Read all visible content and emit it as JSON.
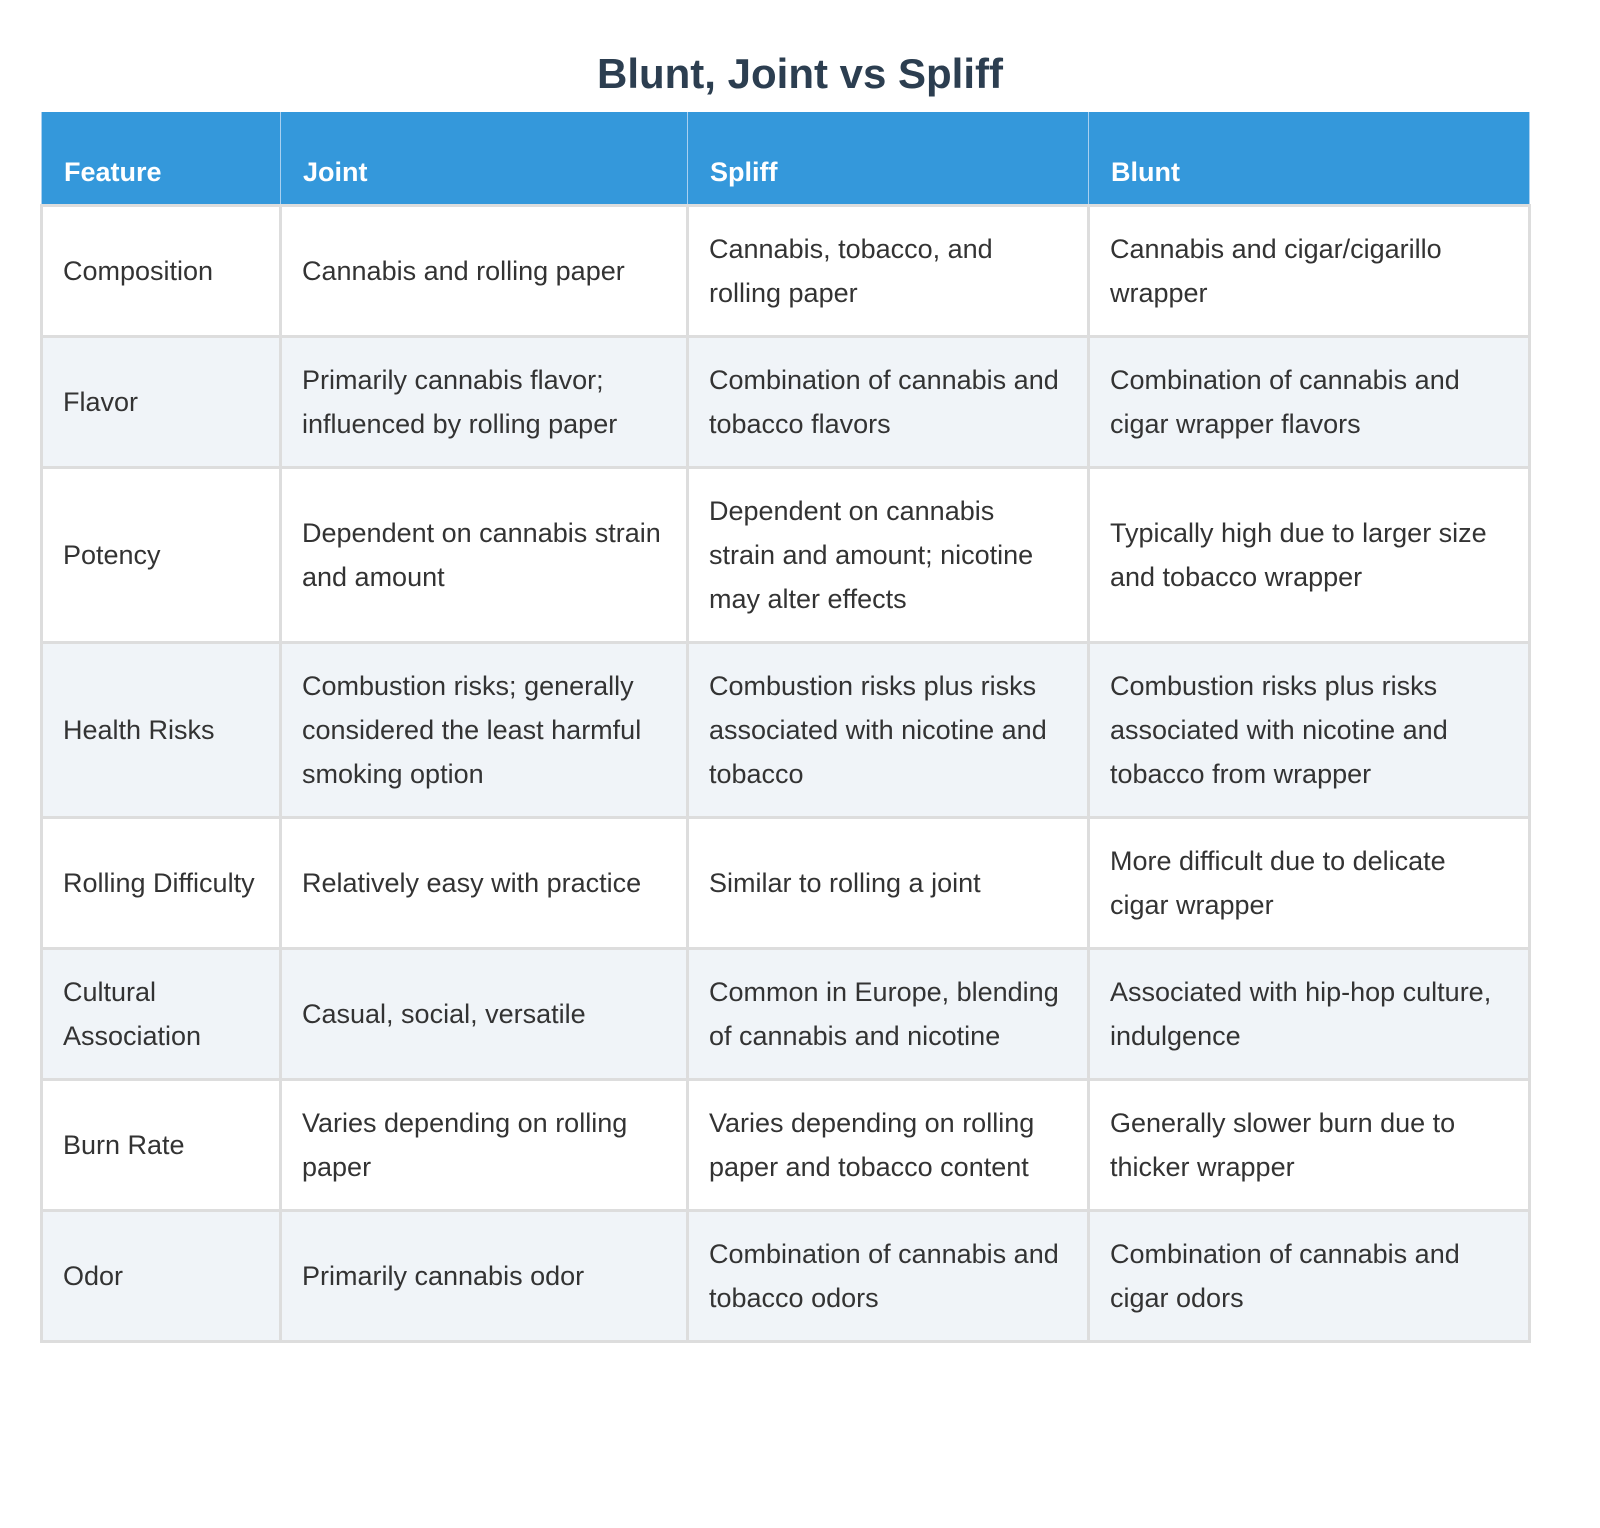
{
  "title": "Blunt, Joint vs Spliff",
  "columns": [
    "Feature",
    "Joint",
    "Spliff",
    "Blunt"
  ],
  "rows": [
    [
      "Composition",
      "Cannabis and rolling paper",
      "Cannabis, tobacco, and rolling paper",
      "Cannabis and cigar/cigarillo wrapper"
    ],
    [
      "Flavor",
      "Primarily cannabis flavor; influenced by rolling paper",
      "Combination of cannabis and tobacco flavors",
      "Combination of cannabis and cigar wrapper flavors"
    ],
    [
      "Potency",
      "Dependent on cannabis strain and amount",
      "Dependent on cannabis strain and amount; nicotine may alter effects",
      "Typically high due to larger size and tobacco wrapper"
    ],
    [
      "Health Risks",
      "Combustion risks; generally considered the least harmful smoking option",
      "Combustion risks plus risks associated with nicotine and tobacco",
      "Combustion risks plus risks associated with nicotine and tobacco from wrapper"
    ],
    [
      "Rolling Difficulty",
      "Relatively easy with practice",
      "Similar to rolling a joint",
      "More difficult due to delicate cigar wrapper"
    ],
    [
      "Cultural Association",
      "Casual, social, versatile",
      "Common in Europe, blending of cannabis and nicotine",
      "Associated with hip-hop culture, indulgence"
    ],
    [
      "Burn Rate",
      "Varies depending on rolling paper",
      "Varies depending on rolling paper and tobacco content",
      "Generally slower burn due to thicker wrapper"
    ],
    [
      "Odor",
      "Primarily cannabis odor",
      "Combination of cannabis and tobacco odors",
      "Combination of cannabis and cigar odors"
    ]
  ],
  "colors": {
    "header_bg": "#3498db",
    "title": "#2c3e50",
    "alt_row": "#f0f4f8"
  }
}
